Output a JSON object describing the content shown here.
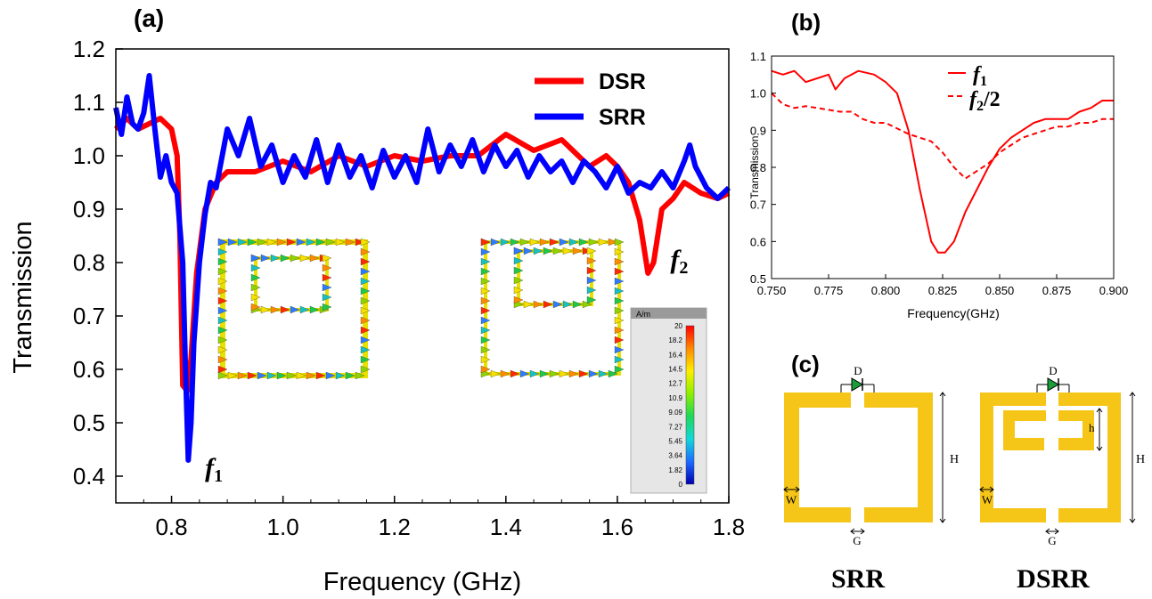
{
  "panel_labels": {
    "a": "(a)",
    "b": "(b)",
    "c": "(c)"
  },
  "chart_data": [
    {
      "panel": "(a)",
      "type": "line",
      "xlabel": "Frequency (GHz)",
      "ylabel": "Transmission",
      "xlim": [
        0.7,
        1.8
      ],
      "ylim": [
        0.35,
        1.2
      ],
      "xticks": [
        0.8,
        1.0,
        1.2,
        1.4,
        1.6,
        1.8
      ],
      "yticks": [
        0.4,
        0.5,
        0.6,
        0.7,
        0.8,
        0.9,
        1.0,
        1.1,
        1.2
      ],
      "legend_position": "top-right",
      "series": [
        {
          "name": "DSR",
          "color": "#ff0000",
          "points": [
            [
              0.7,
              1.05
            ],
            [
              0.72,
              1.07
            ],
            [
              0.74,
              1.05
            ],
            [
              0.76,
              1.06
            ],
            [
              0.78,
              1.07
            ],
            [
              0.8,
              1.05
            ],
            [
              0.81,
              1.0
            ],
            [
              0.815,
              0.85
            ],
            [
              0.82,
              0.57
            ],
            [
              0.828,
              0.56
            ],
            [
              0.835,
              0.62
            ],
            [
              0.845,
              0.78
            ],
            [
              0.86,
              0.9
            ],
            [
              0.88,
              0.95
            ],
            [
              0.9,
              0.97
            ],
            [
              0.95,
              0.97
            ],
            [
              1.0,
              0.99
            ],
            [
              1.05,
              0.97
            ],
            [
              1.1,
              1.0
            ],
            [
              1.15,
              0.98
            ],
            [
              1.2,
              1.0
            ],
            [
              1.25,
              0.99
            ],
            [
              1.3,
              1.0
            ],
            [
              1.35,
              1.0
            ],
            [
              1.4,
              1.04
            ],
            [
              1.45,
              1.01
            ],
            [
              1.5,
              1.03
            ],
            [
              1.55,
              0.98
            ],
            [
              1.58,
              1.0
            ],
            [
              1.6,
              0.98
            ],
            [
              1.62,
              0.95
            ],
            [
              1.64,
              0.88
            ],
            [
              1.655,
              0.78
            ],
            [
              1.665,
              0.8
            ],
            [
              1.68,
              0.9
            ],
            [
              1.7,
              0.92
            ],
            [
              1.72,
              0.95
            ],
            [
              1.75,
              0.93
            ],
            [
              1.78,
              0.92
            ],
            [
              1.8,
              0.93
            ]
          ]
        },
        {
          "name": "SRR",
          "color": "#0000ff",
          "points": [
            [
              0.7,
              1.09
            ],
            [
              0.71,
              1.04
            ],
            [
              0.72,
              1.11
            ],
            [
              0.73,
              1.06
            ],
            [
              0.74,
              1.05
            ],
            [
              0.75,
              1.08
            ],
            [
              0.76,
              1.15
            ],
            [
              0.77,
              1.05
            ],
            [
              0.78,
              0.96
            ],
            [
              0.79,
              1.0
            ],
            [
              0.8,
              0.95
            ],
            [
              0.81,
              0.93
            ],
            [
              0.82,
              0.8
            ],
            [
              0.825,
              0.6
            ],
            [
              0.83,
              0.43
            ],
            [
              0.835,
              0.5
            ],
            [
              0.84,
              0.65
            ],
            [
              0.85,
              0.8
            ],
            [
              0.86,
              0.89
            ],
            [
              0.87,
              0.95
            ],
            [
              0.88,
              0.94
            ],
            [
              0.9,
              1.05
            ],
            [
              0.92,
              1.0
            ],
            [
              0.94,
              1.07
            ],
            [
              0.96,
              0.98
            ],
            [
              0.98,
              1.02
            ],
            [
              1.0,
              0.95
            ],
            [
              1.02,
              1.0
            ],
            [
              1.04,
              0.96
            ],
            [
              1.06,
              1.03
            ],
            [
              1.08,
              0.95
            ],
            [
              1.1,
              1.02
            ],
            [
              1.12,
              0.96
            ],
            [
              1.14,
              1.0
            ],
            [
              1.16,
              0.94
            ],
            [
              1.18,
              1.01
            ],
            [
              1.2,
              0.96
            ],
            [
              1.22,
              1.0
            ],
            [
              1.24,
              0.95
            ],
            [
              1.26,
              1.05
            ],
            [
              1.28,
              0.97
            ],
            [
              1.3,
              1.02
            ],
            [
              1.32,
              0.98
            ],
            [
              1.34,
              1.03
            ],
            [
              1.36,
              0.97
            ],
            [
              1.38,
              1.02
            ],
            [
              1.4,
              0.98
            ],
            [
              1.42,
              1.01
            ],
            [
              1.44,
              0.96
            ],
            [
              1.46,
              1.0
            ],
            [
              1.48,
              0.97
            ],
            [
              1.5,
              0.99
            ],
            [
              1.52,
              0.95
            ],
            [
              1.54,
              0.99
            ],
            [
              1.56,
              0.97
            ],
            [
              1.58,
              0.94
            ],
            [
              1.6,
              0.98
            ],
            [
              1.62,
              0.93
            ],
            [
              1.64,
              0.95
            ],
            [
              1.66,
              0.94
            ],
            [
              1.68,
              0.97
            ],
            [
              1.7,
              0.94
            ],
            [
              1.72,
              0.99
            ],
            [
              1.73,
              1.02
            ],
            [
              1.74,
              0.98
            ],
            [
              1.76,
              0.94
            ],
            [
              1.78,
              0.92
            ],
            [
              1.8,
              0.94
            ]
          ]
        }
      ],
      "annotations": [
        {
          "label": "f",
          "sub": "1",
          "x": 0.86,
          "y": 0.4
        },
        {
          "label": "f",
          "sub": "2",
          "x": 1.695,
          "y": 0.79
        }
      ],
      "colorbar": {
        "unit": "A/m",
        "ticks": [
          "20",
          "18.2",
          "16.4",
          "14.5",
          "12.7",
          "10.9",
          "9.09",
          "7.27",
          "5.45",
          "3.64",
          "1.82",
          "0"
        ]
      }
    },
    {
      "panel": "(b)",
      "type": "line",
      "xlabel": "Frequency(GHz)",
      "ylabel": "Transmission",
      "xlim": [
        0.75,
        0.9
      ],
      "ylim": [
        0.5,
        1.1
      ],
      "xticks": [
        "0.750",
        "0.775",
        "0.800",
        "0.825",
        "0.850",
        "0.875",
        "0.900"
      ],
      "yticks": [
        "0.5",
        "0.6",
        "0.7",
        "0.8",
        "0.9",
        "1.0",
        "1.1"
      ],
      "legend_position": "top-right",
      "series": [
        {
          "name": "f1",
          "legend_main": "f",
          "legend_sub": "1",
          "color": "#ff0000",
          "style": "solid",
          "points": [
            [
              0.75,
              1.06
            ],
            [
              0.755,
              1.05
            ],
            [
              0.76,
              1.06
            ],
            [
              0.765,
              1.03
            ],
            [
              0.77,
              1.04
            ],
            [
              0.775,
              1.05
            ],
            [
              0.778,
              1.01
            ],
            [
              0.782,
              1.04
            ],
            [
              0.788,
              1.06
            ],
            [
              0.795,
              1.05
            ],
            [
              0.8,
              1.03
            ],
            [
              0.805,
              1.0
            ],
            [
              0.81,
              0.9
            ],
            [
              0.815,
              0.74
            ],
            [
              0.82,
              0.6
            ],
            [
              0.823,
              0.57
            ],
            [
              0.826,
              0.57
            ],
            [
              0.83,
              0.6
            ],
            [
              0.835,
              0.68
            ],
            [
              0.84,
              0.74
            ],
            [
              0.845,
              0.8
            ],
            [
              0.85,
              0.85
            ],
            [
              0.855,
              0.88
            ],
            [
              0.86,
              0.9
            ],
            [
              0.865,
              0.92
            ],
            [
              0.87,
              0.93
            ],
            [
              0.875,
              0.93
            ],
            [
              0.88,
              0.93
            ],
            [
              0.885,
              0.95
            ],
            [
              0.89,
              0.96
            ],
            [
              0.895,
              0.98
            ],
            [
              0.9,
              0.98
            ]
          ]
        },
        {
          "name": "f2/2",
          "legend_main": "f",
          "legend_sub": "2",
          "legend_suffix": "/2",
          "color": "#ff0000",
          "style": "dashed",
          "points": [
            [
              0.75,
              1.0
            ],
            [
              0.755,
              0.97
            ],
            [
              0.76,
              0.96
            ],
            [
              0.765,
              0.965
            ],
            [
              0.77,
              0.96
            ],
            [
              0.78,
              0.95
            ],
            [
              0.785,
              0.95
            ],
            [
              0.79,
              0.93
            ],
            [
              0.795,
              0.92
            ],
            [
              0.8,
              0.92
            ],
            [
              0.81,
              0.89
            ],
            [
              0.815,
              0.88
            ],
            [
              0.82,
              0.87
            ],
            [
              0.825,
              0.84
            ],
            [
              0.83,
              0.8
            ],
            [
              0.835,
              0.77
            ],
            [
              0.84,
              0.79
            ],
            [
              0.845,
              0.81
            ],
            [
              0.85,
              0.84
            ],
            [
              0.855,
              0.86
            ],
            [
              0.86,
              0.88
            ],
            [
              0.865,
              0.89
            ],
            [
              0.87,
              0.9
            ],
            [
              0.875,
              0.91
            ],
            [
              0.88,
              0.91
            ],
            [
              0.885,
              0.92
            ],
            [
              0.89,
              0.92
            ],
            [
              0.895,
              0.93
            ],
            [
              0.9,
              0.93
            ]
          ]
        }
      ]
    }
  ],
  "panel_c": {
    "srr_caption": "SRR",
    "dsrr_caption": "DSRR",
    "labels": {
      "D": "D",
      "H": "H",
      "W": "W",
      "G": "G",
      "h": "h"
    },
    "metal_color": "#f5c518",
    "diode_color": "#1a9e3a"
  }
}
